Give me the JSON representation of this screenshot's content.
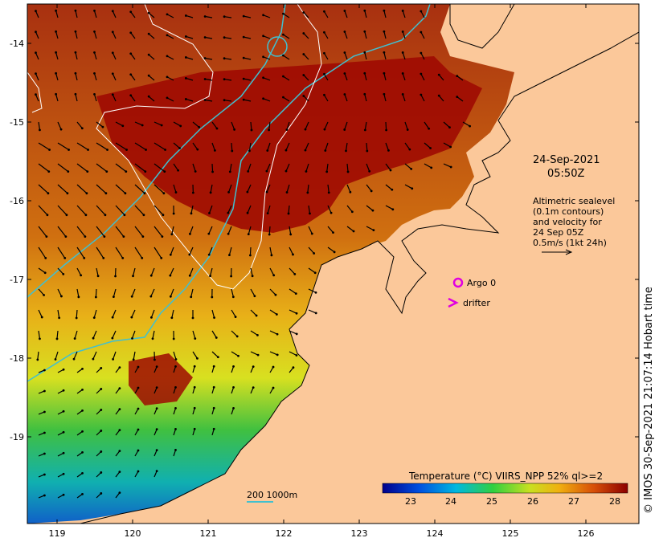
{
  "map": {
    "date": "24-Sep-2021",
    "time": "05:50Z",
    "legend_lines": [
      "Altimetric sealevel",
      "(0.1m contours)",
      "and velocity for",
      "24 Sep 05Z",
      "0.5m/s (1kt 24h)"
    ],
    "argo_label": "Argo 0",
    "drifter_label": "drifter",
    "scale_label": "200 1000m",
    "colorbar_title": "Temperature (°C) VIIRS_NPP 52% ql>=2",
    "colorbar_ticks": [
      "23",
      "24",
      "25",
      "26",
      "27",
      "28"
    ],
    "x_ticks": [
      "119",
      "120",
      "121",
      "122",
      "123",
      "124",
      "125",
      "126"
    ],
    "y_ticks": [
      "-14",
      "-15",
      "-16",
      "-17",
      "-18",
      "-19"
    ],
    "credit": "© IMOS 30-Sep-2021 21:07:14 Hobart time",
    "colors": {
      "land": "#fbc89a",
      "hot": "#9e0a02",
      "warm": "#c65a08",
      "mid": "#e8a010",
      "yellow": "#e8e020",
      "green": "#30c040",
      "cool": "#10b0c8",
      "cold": "#1060c8",
      "isobath": "#40c0d0"
    }
  }
}
